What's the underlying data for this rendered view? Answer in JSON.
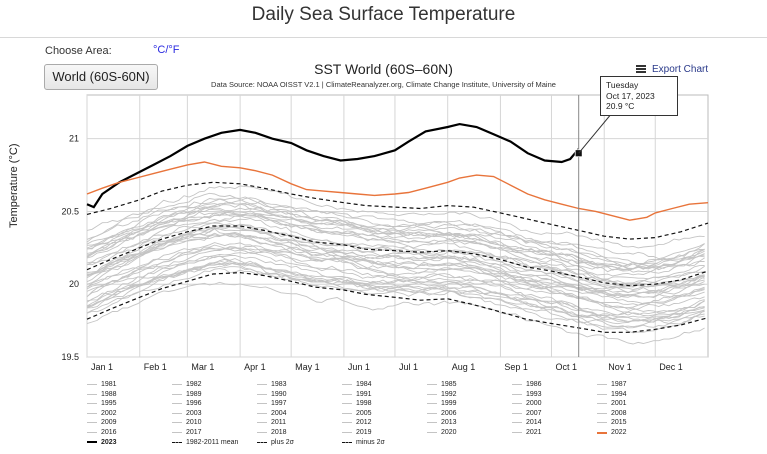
{
  "page": {
    "title": "Daily Sea Surface Temperature"
  },
  "controls": {
    "choose_area_label": "Choose Area:",
    "unit_toggle": "°C/°F",
    "area_value": "World (60S-60N)",
    "export_label": "Export Chart",
    "export_icon": "menu-icon"
  },
  "tooltip": {
    "day": "Tuesday",
    "date": "Oct 17, 2023",
    "value": "20.9 °C"
  },
  "colors": {
    "grey": "#c4c4c4",
    "black": "#000000",
    "orange": "#e8743b",
    "dashed": "#111111",
    "grid": "#d6d6d6"
  },
  "chart_data": {
    "type": "line",
    "title": "SST World (60S–60N)",
    "subtitle": "Data Source: NOAA OISST V2.1 | ClimateReanalyzer.org, Climate Change Institute, University of Maine",
    "ylabel": "Temperature (°C)",
    "xlabel": "",
    "ylim": [
      19.5,
      21.3
    ],
    "yticks": [
      19.5,
      20,
      20.5,
      21
    ],
    "ytick_labels": [
      "19.5",
      "20",
      "20.5",
      "21"
    ],
    "xlim": [
      1,
      366
    ],
    "x_unit": "day of year",
    "month_starts": [
      1,
      32,
      60,
      91,
      121,
      152,
      182,
      213,
      244,
      274,
      305,
      335
    ],
    "month_labels": [
      "Jan 1",
      "Feb 1",
      "Mar 1",
      "Apr 1",
      "May 1",
      "Jun 1",
      "Jul 1",
      "Aug 1",
      "Sep 1",
      "Oct 1",
      "Nov 1",
      "Dec 1"
    ],
    "grid": true,
    "legend_position": "bottom",
    "crosshair_x": 290,
    "highlight": {
      "x": 290,
      "y": 20.9
    },
    "series": [
      {
        "name": "2023",
        "style": "black",
        "x": [
          1,
          5,
          10,
          20,
          30,
          40,
          50,
          60,
          70,
          80,
          91,
          100,
          110,
          121,
          130,
          140,
          150,
          160,
          170,
          182,
          190,
          200,
          213,
          220,
          230,
          240,
          250,
          260,
          270,
          280,
          285,
          290
        ],
        "y": [
          20.55,
          20.53,
          20.62,
          20.7,
          20.76,
          20.82,
          20.88,
          20.95,
          21.0,
          21.04,
          21.06,
          21.04,
          21.0,
          20.97,
          20.92,
          20.88,
          20.85,
          20.86,
          20.88,
          20.92,
          20.98,
          21.05,
          21.08,
          21.1,
          21.08,
          21.03,
          20.98,
          20.9,
          20.85,
          20.84,
          20.86,
          20.93
        ]
      },
      {
        "name": "2022",
        "style": "orange",
        "x": [
          1,
          10,
          20,
          30,
          40,
          50,
          60,
          70,
          80,
          91,
          100,
          110,
          121,
          130,
          140,
          150,
          160,
          170,
          182,
          190,
          200,
          213,
          220,
          230,
          240,
          250,
          260,
          270,
          280,
          290,
          300,
          310,
          320,
          330,
          335,
          345,
          355,
          366
        ],
        "y": [
          20.62,
          20.66,
          20.7,
          20.73,
          20.76,
          20.79,
          20.82,
          20.84,
          20.81,
          20.8,
          20.78,
          20.75,
          20.69,
          20.65,
          20.64,
          20.63,
          20.62,
          20.61,
          20.62,
          20.63,
          20.66,
          20.7,
          20.73,
          20.75,
          20.74,
          20.68,
          20.62,
          20.58,
          20.55,
          20.52,
          20.5,
          20.47,
          20.44,
          20.46,
          20.49,
          20.52,
          20.55,
          20.56
        ]
      },
      {
        "name": "1982-2011 mean",
        "style": "dashed",
        "x": [
          1,
          15,
          32,
          45,
          60,
          75,
          91,
          105,
          121,
          135,
          152,
          165,
          182,
          197,
          213,
          228,
          244,
          259,
          274,
          290,
          305,
          320,
          335,
          350,
          366
        ],
        "y": [
          20.1,
          20.17,
          20.25,
          20.31,
          20.36,
          20.4,
          20.4,
          20.37,
          20.33,
          20.29,
          20.27,
          20.24,
          20.23,
          20.22,
          20.23,
          20.21,
          20.17,
          20.12,
          20.09,
          20.05,
          20.01,
          19.99,
          20.0,
          20.03,
          20.09
        ]
      },
      {
        "name": "plus 2σ",
        "style": "dashed",
        "x": [
          1,
          15,
          32,
          45,
          60,
          75,
          91,
          105,
          121,
          135,
          152,
          165,
          182,
          197,
          213,
          228,
          244,
          259,
          274,
          290,
          305,
          320,
          335,
          350,
          366
        ],
        "y": [
          20.48,
          20.52,
          20.58,
          20.64,
          20.68,
          20.7,
          20.69,
          20.66,
          20.62,
          20.59,
          20.56,
          20.54,
          20.53,
          20.52,
          20.54,
          20.53,
          20.49,
          20.45,
          20.41,
          20.37,
          20.33,
          20.31,
          20.32,
          20.36,
          20.42
        ]
      },
      {
        "name": "minus 2σ",
        "style": "dashed",
        "x": [
          1,
          15,
          32,
          45,
          60,
          75,
          91,
          105,
          121,
          135,
          152,
          165,
          182,
          197,
          213,
          228,
          244,
          259,
          274,
          290,
          305,
          320,
          335,
          350,
          366
        ],
        "y": [
          19.76,
          19.83,
          19.91,
          19.97,
          20.02,
          20.07,
          20.08,
          20.06,
          20.02,
          19.98,
          19.96,
          19.93,
          19.91,
          19.89,
          19.9,
          19.86,
          19.81,
          19.76,
          19.73,
          19.7,
          19.67,
          19.67,
          19.69,
          19.72,
          19.77
        ]
      }
    ],
    "background_years": [
      "1981",
      "1982",
      "1983",
      "1984",
      "1985",
      "1986",
      "1987",
      "1988",
      "1989",
      "1990",
      "1991",
      "1992",
      "1993",
      "1994",
      "1995",
      "1996",
      "1997",
      "1998",
      "1999",
      "2000",
      "2001",
      "2002",
      "2003",
      "2004",
      "2005",
      "2006",
      "2007",
      "2008",
      "2009",
      "2010",
      "2011",
      "2012",
      "2013",
      "2014",
      "2015",
      "2016",
      "2017",
      "2018",
      "2019",
      "2020",
      "2021"
    ],
    "legend": [
      "1981",
      "1982",
      "1983",
      "1984",
      "1985",
      "1986",
      "1987",
      "1988",
      "1989",
      "1990",
      "1991",
      "1992",
      "1993",
      "1994",
      "1995",
      "1996",
      "1997",
      "1998",
      "1999",
      "2000",
      "2001",
      "2002",
      "2003",
      "2004",
      "2005",
      "2006",
      "2007",
      "2008",
      "2009",
      "2010",
      "2011",
      "2012",
      "2013",
      "2014",
      "2015",
      "2016",
      "2017",
      "2018",
      "2019",
      "2020",
      "2021",
      "2022",
      "2023",
      "1982-2011 mean",
      "plus 2σ",
      "minus 2σ"
    ]
  }
}
